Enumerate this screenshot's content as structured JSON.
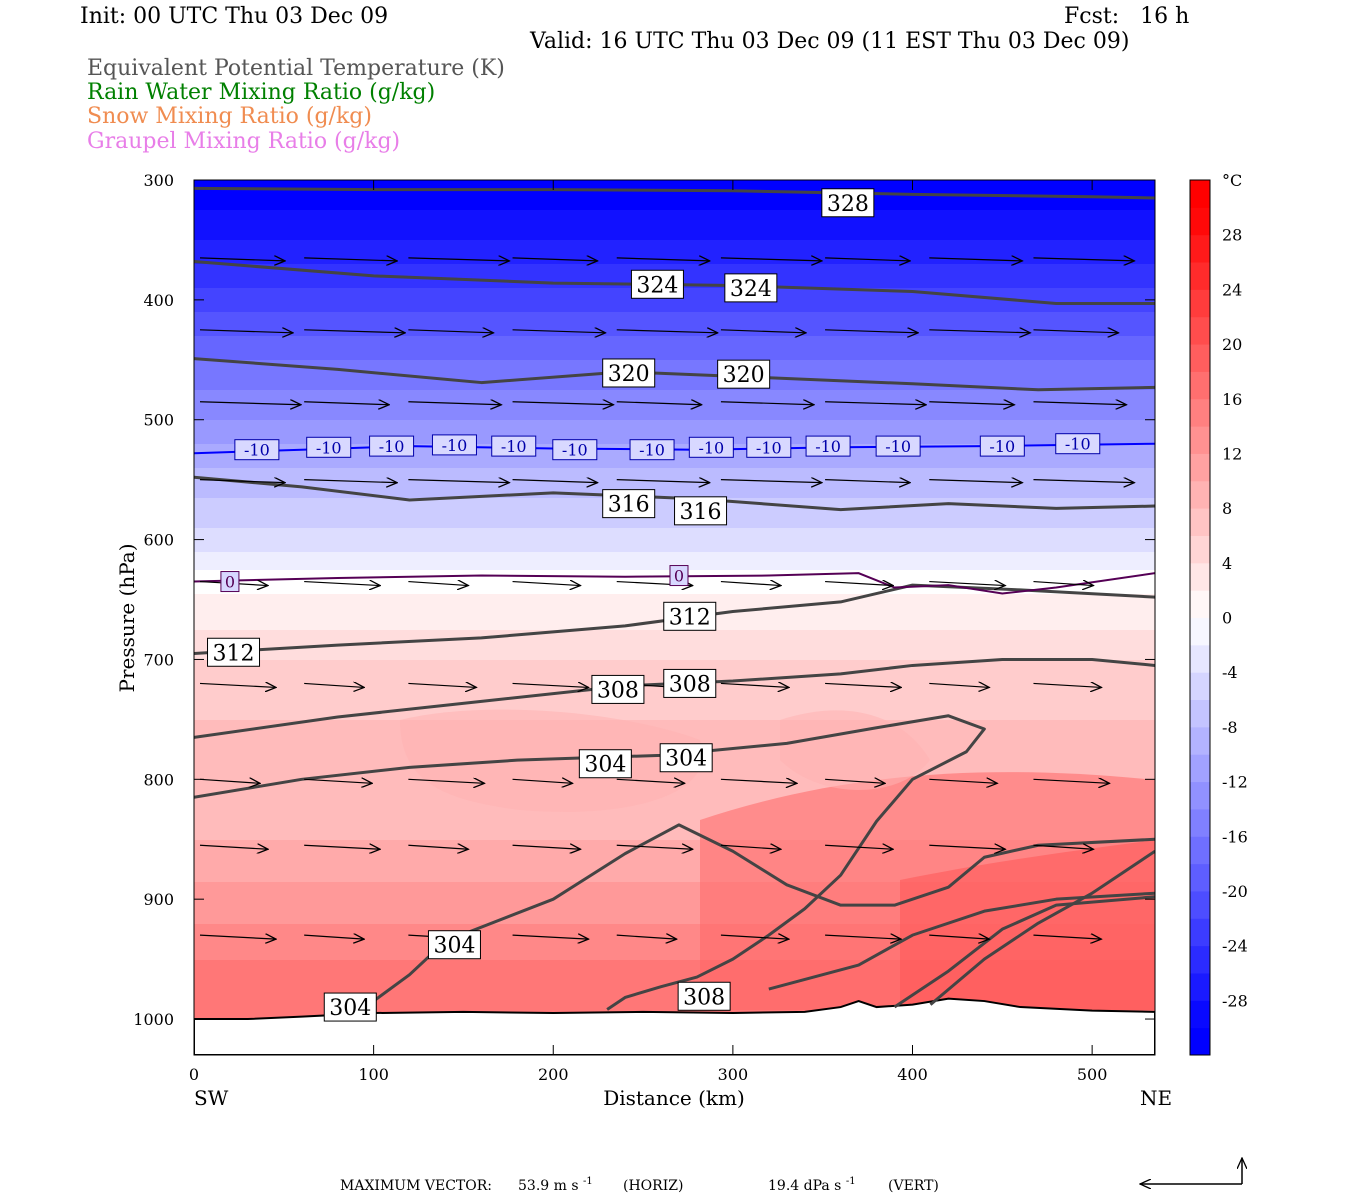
{
  "header": {
    "init": "Init: 00 UTC Thu 03 Dec 09",
    "fcst": "Fcst:   16 h",
    "valid": "Valid: 16 UTC Thu 03 Dec 09 (11 EST Thu 03 Dec 09)",
    "titles": [
      {
        "text": "Equivalent Potential Temperature (K)",
        "color": "#555555"
      },
      {
        "text": "Rain Water Mixing Ratio (g/kg)",
        "color": "#008000"
      },
      {
        "text": "Snow Mixing Ratio (g/kg)",
        "color": "#f08c50"
      },
      {
        "text": "Graupel Mixing Ratio (g/kg)",
        "color": "#e87ee8"
      }
    ]
  },
  "chart_data": {
    "type": "heatmap",
    "xlabel": "Distance (km)",
    "ylabel": "Pressure (hPa)",
    "xlim": [
      0,
      535
    ],
    "ylim": [
      1030,
      300
    ],
    "x_ticks": [
      0,
      100,
      200,
      300,
      400,
      500
    ],
    "y_ticks": [
      300,
      400,
      500,
      600,
      700,
      800,
      900,
      1000
    ],
    "x_left_label": "SW",
    "x_right_label": "NE",
    "colorbar": {
      "unit": "°C",
      "tick_labels": [
        "28",
        "24",
        "20",
        "16",
        "12",
        "8",
        "4",
        "0",
        "-4",
        "-8",
        "-12",
        "-16",
        "-20",
        "-24",
        "-28"
      ],
      "levels": [
        -32,
        -30,
        -28,
        -26,
        -24,
        -22,
        -20,
        -18,
        -16,
        -14,
        -12,
        -10,
        -8,
        -6,
        -4,
        -2,
        0,
        2,
        4,
        6,
        8,
        10,
        12,
        14,
        16,
        18,
        20,
        22,
        24,
        26,
        28,
        30,
        32
      ],
      "cold_color": "#0000ff",
      "warm_color": "#ff0000"
    },
    "temperature_rows": [
      {
        "p": 300,
        "t": -31
      },
      {
        "p": 350,
        "t": -27
      },
      {
        "p": 400,
        "t": -22
      },
      {
        "p": 450,
        "t": -17
      },
      {
        "p": 500,
        "t": -13
      },
      {
        "p": 550,
        "t": -8
      },
      {
        "p": 600,
        "t": -4
      },
      {
        "p": 630,
        "t": 0
      },
      {
        "p": 660,
        "t": 2
      },
      {
        "p": 700,
        "t": 5
      },
      {
        "p": 750,
        "t": 7
      },
      {
        "p": 800,
        "t": 8
      },
      {
        "p": 850,
        "t": 9
      },
      {
        "p": 900,
        "t": 12
      },
      {
        "p": 950,
        "t": 15
      },
      {
        "p": 1000,
        "t": 17
      }
    ],
    "isotherm_labels": [
      {
        "text": "-10",
        "x": 35,
        "p": 525
      },
      {
        "text": "-10",
        "x": 75,
        "p": 523
      },
      {
        "text": "-10",
        "x": 110,
        "p": 522
      },
      {
        "text": "-10",
        "x": 145,
        "p": 521
      },
      {
        "text": "-10",
        "x": 178,
        "p": 522
      },
      {
        "text": "-10",
        "x": 212,
        "p": 525
      },
      {
        "text": "-10",
        "x": 255,
        "p": 525
      },
      {
        "text": "-10",
        "x": 288,
        "p": 523
      },
      {
        "text": "-10",
        "x": 320,
        "p": 523
      },
      {
        "text": "-10",
        "x": 353,
        "p": 522
      },
      {
        "text": "-10",
        "x": 392,
        "p": 522
      },
      {
        "text": "-10",
        "x": 450,
        "p": 522
      },
      {
        "text": "-10",
        "x": 492,
        "p": 520
      },
      {
        "text": "0",
        "x": 20,
        "p": 635
      },
      {
        "text": "0",
        "x": 270,
        "p": 630
      }
    ],
    "theta_e_labels": [
      {
        "text": "328",
        "x": 364,
        "p": 319
      },
      {
        "text": "324",
        "x": 258,
        "p": 387
      },
      {
        "text": "324",
        "x": 310,
        "p": 390
      },
      {
        "text": "320",
        "x": 242,
        "p": 461
      },
      {
        "text": "320",
        "x": 306,
        "p": 462
      },
      {
        "text": "316",
        "x": 242,
        "p": 570
      },
      {
        "text": "316",
        "x": 282,
        "p": 576
      },
      {
        "text": "312",
        "x": 22,
        "p": 694
      },
      {
        "text": "312",
        "x": 276,
        "p": 664
      },
      {
        "text": "308",
        "x": 236,
        "p": 725
      },
      {
        "text": "308",
        "x": 276,
        "p": 720
      },
      {
        "text": "304",
        "x": 229,
        "p": 787
      },
      {
        "text": "304",
        "x": 274,
        "p": 782
      },
      {
        "text": "304",
        "x": 145,
        "p": 938
      },
      {
        "text": "308",
        "x": 284,
        "p": 981
      },
      {
        "text": "304",
        "x": 87,
        "p": 990
      }
    ]
  },
  "footer": {
    "max_vector_label": "MAXIMUM VECTOR:",
    "horiz_value": "53.9 m s",
    "horiz_exp": "-1",
    "horiz_tag": "(HORIZ)",
    "vert_value": "19.4 dPa s",
    "vert_exp": "-1",
    "vert_tag": "(VERT)"
  }
}
